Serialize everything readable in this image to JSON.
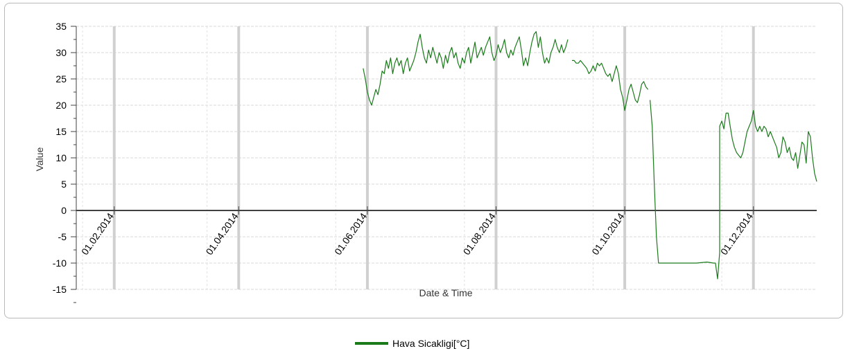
{
  "chart_data": {
    "type": "line",
    "title": "",
    "xlabel": "Date & Time",
    "ylabel": "Value",
    "ylim": [
      -15,
      35
    ],
    "y_ticks": [
      "35",
      "30",
      "25",
      "20",
      "15",
      "10",
      "5",
      "0",
      "-5",
      "-10",
      "-15"
    ],
    "x_range": [
      "2014-01-14",
      "2014-12-31"
    ],
    "x_ticks": [
      {
        "date": "2014-02-01",
        "label": "01.02.2014"
      },
      {
        "date": "2014-04-01",
        "label": "01.04.2014"
      },
      {
        "date": "2014-06-01",
        "label": "01.06.2014"
      },
      {
        "date": "2014-08-01",
        "label": "01.08.2014"
      },
      {
        "date": "2014-10-01",
        "label": "01.10.2014"
      },
      {
        "date": "2014-12-01",
        "label": "01.12.2014"
      }
    ],
    "grid": true,
    "legend_position": "bottom",
    "colors": {
      "series": "#1a7a1a",
      "major_grid": "#d0d0d0",
      "minor_grid": "#d8d8d8",
      "zero_line": "#404040"
    },
    "series": [
      {
        "name": "Hava Sicakligi[°C]",
        "points": [
          [
            "2014-05-30",
            27
          ],
          [
            "2014-05-31",
            25
          ],
          [
            "2014-06-01",
            22.5
          ],
          [
            "2014-06-02",
            21
          ],
          [
            "2014-06-03",
            20
          ],
          [
            "2014-06-04",
            21.5
          ],
          [
            "2014-06-05",
            23
          ],
          [
            "2014-06-06",
            22
          ],
          [
            "2014-06-07",
            24
          ],
          [
            "2014-06-08",
            26.5
          ],
          [
            "2014-06-09",
            26
          ],
          [
            "2014-06-10",
            28.5
          ],
          [
            "2014-06-11",
            27
          ],
          [
            "2014-06-12",
            29
          ],
          [
            "2014-06-13",
            26
          ],
          [
            "2014-06-14",
            28
          ],
          [
            "2014-06-15",
            29
          ],
          [
            "2014-06-16",
            27.5
          ],
          [
            "2014-06-17",
            28.5
          ],
          [
            "2014-06-18",
            26
          ],
          [
            "2014-06-19",
            28
          ],
          [
            "2014-06-20",
            29
          ],
          [
            "2014-06-21",
            26.5
          ],
          [
            "2014-06-22",
            27.5
          ],
          [
            "2014-06-23",
            28.5
          ],
          [
            "2014-06-24",
            30
          ],
          [
            "2014-06-25",
            32
          ],
          [
            "2014-06-26",
            33.5
          ],
          [
            "2014-06-27",
            31
          ],
          [
            "2014-06-28",
            29
          ],
          [
            "2014-06-29",
            28
          ],
          [
            "2014-06-30",
            30.5
          ],
          [
            "2014-07-01",
            29
          ],
          [
            "2014-07-02",
            31
          ],
          [
            "2014-07-03",
            29.5
          ],
          [
            "2014-07-04",
            28
          ],
          [
            "2014-07-05",
            30
          ],
          [
            "2014-07-06",
            29
          ],
          [
            "2014-07-07",
            27
          ],
          [
            "2014-07-08",
            29.5
          ],
          [
            "2014-07-09",
            28
          ],
          [
            "2014-07-10",
            30
          ],
          [
            "2014-07-11",
            31
          ],
          [
            "2014-07-12",
            29
          ],
          [
            "2014-07-13",
            30
          ],
          [
            "2014-07-14",
            28
          ],
          [
            "2014-07-15",
            27
          ],
          [
            "2014-07-16",
            29
          ],
          [
            "2014-07-17",
            28
          ],
          [
            "2014-07-18",
            30
          ],
          [
            "2014-07-19",
            31
          ],
          [
            "2014-07-20",
            28
          ],
          [
            "2014-07-21",
            30
          ],
          [
            "2014-07-22",
            32
          ],
          [
            "2014-07-23",
            29
          ],
          [
            "2014-07-24",
            30
          ],
          [
            "2014-07-25",
            31
          ],
          [
            "2014-07-26",
            29.5
          ],
          [
            "2014-07-27",
            31
          ],
          [
            "2014-07-28",
            32
          ],
          [
            "2014-07-29",
            33
          ],
          [
            "2014-07-30",
            30
          ],
          [
            "2014-07-31",
            28.5
          ],
          [
            "2014-08-01",
            29.5
          ],
          [
            "2014-08-02",
            31.5
          ],
          [
            "2014-08-03",
            30
          ],
          [
            "2014-08-04",
            31
          ],
          [
            "2014-08-05",
            32.5
          ],
          [
            "2014-08-06",
            30
          ],
          [
            "2014-08-07",
            29
          ],
          [
            "2014-08-08",
            30.5
          ],
          [
            "2014-08-09",
            29.5
          ],
          [
            "2014-08-10",
            31
          ],
          [
            "2014-08-11",
            32
          ],
          [
            "2014-08-12",
            33
          ],
          [
            "2014-08-13",
            30.5
          ],
          [
            "2014-08-14",
            27.5
          ],
          [
            "2014-08-15",
            29
          ],
          [
            "2014-08-16",
            27.5
          ],
          [
            "2014-08-17",
            30
          ],
          [
            "2014-08-18",
            32
          ],
          [
            "2014-08-19",
            33.5
          ],
          [
            "2014-08-20",
            34
          ],
          [
            "2014-08-21",
            31
          ],
          [
            "2014-08-22",
            33
          ],
          [
            "2014-08-23",
            30
          ],
          [
            "2014-08-24",
            28
          ],
          [
            "2014-08-25",
            29
          ],
          [
            "2014-08-26",
            28
          ],
          [
            "2014-08-27",
            30
          ],
          [
            "2014-08-28",
            31
          ],
          [
            "2014-08-29",
            32.5
          ],
          [
            "2014-08-30",
            31
          ],
          [
            "2014-08-31",
            30
          ],
          [
            "2014-09-01",
            31.5
          ],
          [
            "2014-09-02",
            30
          ],
          [
            "2014-09-03",
            31
          ],
          [
            "2014-09-04",
            32.5
          ],
          null,
          [
            "2014-09-06",
            28.5
          ],
          [
            "2014-09-07",
            28.5
          ],
          [
            "2014-09-08",
            28
          ],
          [
            "2014-09-09",
            28
          ],
          [
            "2014-09-10",
            28.5
          ],
          [
            "2014-09-11",
            28
          ],
          [
            "2014-09-12",
            27.5
          ],
          [
            "2014-09-13",
            27
          ],
          [
            "2014-09-14",
            26
          ],
          [
            "2014-09-15",
            26.5
          ],
          [
            "2014-09-16",
            27.5
          ],
          [
            "2014-09-17",
            26.5
          ],
          [
            "2014-09-18",
            28
          ],
          [
            "2014-09-19",
            27.5
          ],
          [
            "2014-09-20",
            28
          ],
          [
            "2014-09-21",
            27
          ],
          [
            "2014-09-22",
            26
          ],
          [
            "2014-09-23",
            25.5
          ],
          [
            "2014-09-24",
            26
          ],
          [
            "2014-09-25",
            24.5
          ],
          [
            "2014-09-26",
            26
          ],
          [
            "2014-09-27",
            27.5
          ],
          [
            "2014-09-28",
            26
          ],
          [
            "2014-09-29",
            23
          ],
          [
            "2014-09-30",
            21.5
          ],
          [
            "2014-10-01",
            19
          ],
          [
            "2014-10-02",
            21
          ],
          [
            "2014-10-03",
            23
          ],
          [
            "2014-10-04",
            24
          ],
          [
            "2014-10-05",
            22.5
          ],
          [
            "2014-10-06",
            21
          ],
          [
            "2014-10-07",
            20.5
          ],
          [
            "2014-10-08",
            22
          ],
          [
            "2014-10-09",
            24
          ],
          [
            "2014-10-10",
            24.5
          ],
          [
            "2014-10-11",
            23.5
          ],
          [
            "2014-10-12",
            23
          ],
          null,
          [
            "2014-10-13",
            21
          ],
          [
            "2014-10-14",
            16
          ],
          [
            "2014-10-15",
            5
          ],
          [
            "2014-10-16",
            -5
          ],
          [
            "2014-10-17",
            -10
          ],
          [
            "2014-10-20",
            -10
          ],
          [
            "2014-10-25",
            -10
          ],
          [
            "2014-10-30",
            -10
          ],
          [
            "2014-11-04",
            -10
          ],
          [
            "2014-11-09",
            -9.8
          ],
          [
            "2014-11-12",
            -10
          ],
          [
            "2014-11-13",
            -10
          ],
          [
            "2014-11-14",
            -13
          ],
          [
            "2014-11-15",
            -8
          ],
          [
            "2014-11-15",
            16
          ],
          [
            "2014-11-16",
            17
          ],
          [
            "2014-11-17",
            15.5
          ],
          [
            "2014-11-18",
            18.5
          ],
          [
            "2014-11-19",
            18.5
          ],
          [
            "2014-11-20",
            16
          ],
          [
            "2014-11-21",
            13.5
          ],
          [
            "2014-11-22",
            12
          ],
          [
            "2014-11-23",
            11
          ],
          [
            "2014-11-24",
            10.5
          ],
          [
            "2014-11-25",
            10
          ],
          [
            "2014-11-26",
            11
          ],
          [
            "2014-11-27",
            13
          ],
          [
            "2014-11-28",
            15
          ],
          [
            "2014-11-29",
            16
          ],
          [
            "2014-11-30",
            17
          ],
          [
            "2014-12-01",
            19
          ],
          [
            "2014-12-02",
            16
          ],
          [
            "2014-12-03",
            15
          ],
          [
            "2014-12-04",
            16
          ],
          [
            "2014-12-05",
            15
          ],
          [
            "2014-12-06",
            16
          ],
          [
            "2014-12-07",
            15.5
          ],
          [
            "2014-12-08",
            14
          ],
          [
            "2014-12-09",
            15
          ],
          [
            "2014-12-10",
            14
          ],
          [
            "2014-12-11",
            13
          ],
          [
            "2014-12-12",
            12
          ],
          [
            "2014-12-13",
            10
          ],
          [
            "2014-12-14",
            11
          ],
          [
            "2014-12-15",
            14
          ],
          [
            "2014-12-16",
            13
          ],
          [
            "2014-12-17",
            11
          ],
          [
            "2014-12-18",
            12
          ],
          [
            "2014-12-19",
            10
          ],
          [
            "2014-12-20",
            9.5
          ],
          [
            "2014-12-21",
            11
          ],
          [
            "2014-12-22",
            8
          ],
          [
            "2014-12-23",
            10.5
          ],
          [
            "2014-12-24",
            13
          ],
          [
            "2014-12-25",
            12.5
          ],
          [
            "2014-12-26",
            9
          ],
          [
            "2014-12-27",
            15
          ],
          [
            "2014-12-28",
            14
          ],
          [
            "2014-12-29",
            10
          ],
          [
            "2014-12-30",
            7
          ],
          [
            "2014-12-31",
            5.5
          ]
        ]
      }
    ]
  }
}
